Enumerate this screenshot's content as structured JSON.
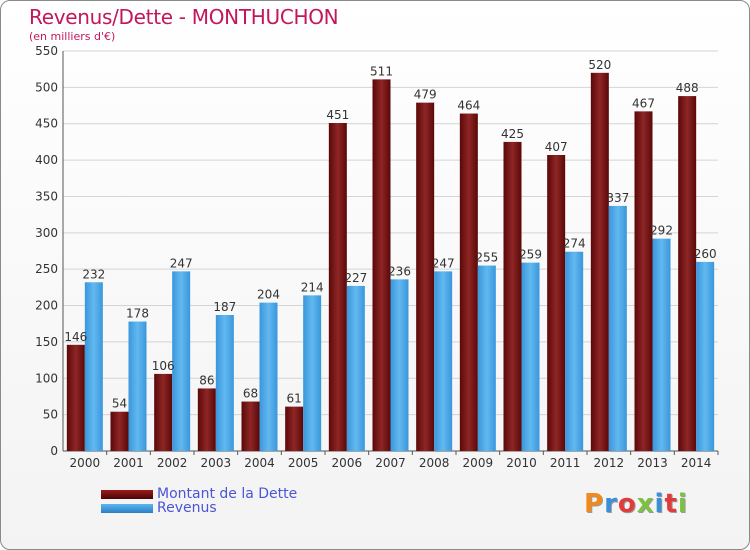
{
  "title": "Revenus/Dette - MONTHUCHON",
  "subtitle": "(en milliers d'€)",
  "legend": {
    "debt_label": "Montant de la Dette",
    "revenue_label": "Revenus"
  },
  "logo": {
    "text": "Proxiti"
  },
  "colors": {
    "debt": "#7b1a1a",
    "revenue": "#4aa8e8",
    "title": "#c2185b",
    "legend_text": "#4b55d6"
  },
  "chart_data": {
    "type": "bar",
    "title": "Revenus/Dette - MONTHUCHON",
    "subtitle": "(en milliers d'€)",
    "categories": [
      "2000",
      "2001",
      "2002",
      "2003",
      "2004",
      "2005",
      "2006",
      "2007",
      "2008",
      "2009",
      "2010",
      "2011",
      "2012",
      "2013",
      "2014"
    ],
    "series": [
      {
        "name": "Montant de la Dette",
        "values": [
          146,
          54,
          106,
          86,
          68,
          61,
          451,
          511,
          479,
          464,
          425,
          407,
          520,
          467,
          488
        ]
      },
      {
        "name": "Revenus",
        "values": [
          232,
          178,
          247,
          187,
          204,
          214,
          227,
          236,
          247,
          255,
          259,
          274,
          337,
          292,
          260
        ]
      }
    ],
    "ylim": [
      0,
      550
    ],
    "yticks": [
      0,
      50,
      100,
      150,
      200,
      250,
      300,
      350,
      400,
      450,
      500,
      550
    ],
    "grid": true,
    "legend_position": "bottom-left"
  }
}
